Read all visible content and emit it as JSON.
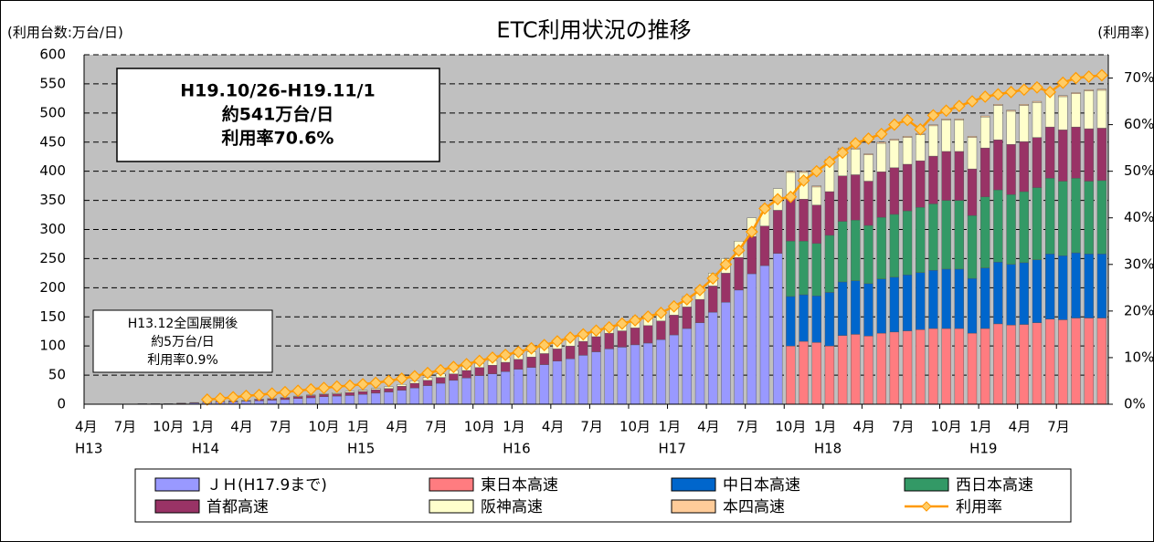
{
  "chart_data": {
    "type": "stacked_bar_line",
    "title": "ETC利用状況の推移",
    "y_label": "(利用台数:万台/日)",
    "y2_label": "(利用率)",
    "annotations": [
      {
        "lines": [
          "H19.10/26-H19.11/1",
          "約541万台/日",
          "利用率70.6%"
        ]
      },
      {
        "lines": [
          "H13.12全国展開後",
          "約5万台/日",
          "利用率0.9%"
        ]
      }
    ],
    "categories": [
      "4月",
      null,
      null,
      "7月",
      null,
      null,
      "10月",
      null,
      null,
      "1月",
      null,
      null,
      "4月",
      null,
      null,
      "7月",
      null,
      null,
      "10月",
      null,
      null,
      "1月",
      null,
      null,
      "4月",
      null,
      null,
      "7月",
      null,
      null,
      "10月",
      null,
      null,
      "1月",
      null,
      null,
      "4月",
      null,
      null,
      "7月",
      null,
      null,
      "10月",
      null,
      null,
      "1月",
      null,
      null,
      "4月",
      null,
      null,
      "7月",
      null,
      null,
      "10月",
      null,
      null,
      "1月",
      null,
      null,
      "4月",
      null,
      null,
      "7月",
      null,
      null,
      "10月",
      null,
      null,
      "1月",
      null,
      null,
      "4月",
      null,
      null,
      "7月",
      null,
      null,
      null
    ],
    "category_years": [
      "H13",
      null,
      null,
      null,
      null,
      null,
      null,
      null,
      null,
      "H14",
      null,
      null,
      null,
      null,
      null,
      null,
      null,
      null,
      null,
      null,
      null,
      "H15",
      null,
      null,
      null,
      null,
      null,
      null,
      null,
      null,
      null,
      null,
      null,
      "H16",
      null,
      null,
      null,
      null,
      null,
      null,
      null,
      null,
      null,
      null,
      null,
      "H17",
      null,
      null,
      null,
      null,
      null,
      null,
      null,
      null,
      null,
      null,
      null,
      "H18",
      null,
      null,
      null,
      null,
      null,
      null,
      null,
      null,
      null,
      null,
      null,
      "H19",
      null,
      null,
      null,
      null,
      null,
      null,
      null,
      null,
      null
    ],
    "ylim": [
      0,
      600
    ],
    "yticks": [
      0,
      50,
      100,
      150,
      200,
      250,
      300,
      350,
      400,
      450,
      500,
      550,
      600
    ],
    "y2lim": [
      0,
      75
    ],
    "y2ticks": [
      {
        "value": 0,
        "label": "0%"
      },
      {
        "value": 10,
        "label": "10%"
      },
      {
        "value": 20,
        "label": "20%"
      },
      {
        "value": 30,
        "label": "30%"
      },
      {
        "value": 40,
        "label": "40%"
      },
      {
        "value": 50,
        "label": "50%"
      },
      {
        "value": 60,
        "label": "60%"
      },
      {
        "value": 70,
        "label": "70%"
      }
    ],
    "grid": true,
    "series": [
      {
        "name": "ＪＨ(H17.9まで)",
        "color": "#9999ff",
        "values": [
          0,
          0,
          0,
          0,
          1,
          1,
          1,
          1,
          2,
          3,
          4,
          4,
          5,
          6,
          7,
          8,
          10,
          11,
          13,
          14,
          15,
          17,
          19,
          21,
          24,
          28,
          32,
          36,
          41,
          45,
          49,
          52,
          56,
          60,
          63,
          68,
          74,
          78,
          84,
          90,
          95,
          98,
          102,
          105,
          111,
          119,
          130,
          140,
          158,
          175,
          196,
          224,
          238,
          259,
          null,
          null,
          null,
          null,
          null,
          null,
          null,
          null,
          null,
          null,
          null,
          null,
          null,
          null,
          null,
          null,
          null,
          null,
          null,
          null,
          null,
          null,
          null,
          null,
          null
        ]
      },
      {
        "name": "東日本高速",
        "color": "#ff7c80",
        "values": [
          null,
          null,
          null,
          null,
          null,
          null,
          null,
          null,
          null,
          null,
          null,
          null,
          null,
          null,
          null,
          null,
          null,
          null,
          null,
          null,
          null,
          null,
          null,
          null,
          null,
          null,
          null,
          null,
          null,
          null,
          null,
          null,
          null,
          null,
          null,
          null,
          null,
          null,
          null,
          null,
          null,
          null,
          null,
          null,
          null,
          null,
          null,
          null,
          null,
          null,
          null,
          null,
          null,
          null,
          100,
          108,
          106,
          100,
          118,
          120,
          117,
          122,
          124,
          126,
          128,
          130,
          130,
          130,
          122,
          130,
          138,
          136,
          137,
          140,
          146,
          145,
          148,
          148,
          148
        ]
      },
      {
        "name": "中日本高速",
        "color": "#0066cc",
        "values": [
          null,
          null,
          null,
          null,
          null,
          null,
          null,
          null,
          null,
          null,
          null,
          null,
          null,
          null,
          null,
          null,
          null,
          null,
          null,
          null,
          null,
          null,
          null,
          null,
          null,
          null,
          null,
          null,
          null,
          null,
          null,
          null,
          null,
          null,
          null,
          null,
          null,
          null,
          null,
          null,
          null,
          null,
          null,
          null,
          null,
          null,
          null,
          null,
          null,
          null,
          null,
          null,
          null,
          null,
          85,
          80,
          80,
          92,
          92,
          92,
          90,
          93,
          94,
          96,
          98,
          100,
          102,
          102,
          94,
          104,
          106,
          104,
          106,
          108,
          112,
          110,
          112,
          110,
          110
        ]
      },
      {
        "name": "西日本高速",
        "color": "#339966",
        "values": [
          null,
          null,
          null,
          null,
          null,
          null,
          null,
          null,
          null,
          null,
          null,
          null,
          null,
          null,
          null,
          null,
          null,
          null,
          null,
          null,
          null,
          null,
          null,
          null,
          null,
          null,
          null,
          null,
          null,
          null,
          null,
          null,
          null,
          null,
          null,
          null,
          null,
          null,
          null,
          null,
          null,
          null,
          null,
          null,
          null,
          null,
          null,
          null,
          null,
          null,
          null,
          null,
          null,
          null,
          95,
          92,
          90,
          98,
          104,
          104,
          100,
          106,
          108,
          110,
          112,
          114,
          118,
          118,
          108,
          122,
          124,
          120,
          122,
          124,
          130,
          128,
          128,
          125,
          126
        ]
      },
      {
        "name": "首都高速",
        "color": "#993366",
        "values": [
          0,
          0,
          0,
          0,
          0,
          0,
          0,
          1,
          1,
          1,
          1,
          1,
          1,
          2,
          2,
          3,
          3,
          4,
          4,
          4,
          5,
          5,
          6,
          6,
          7,
          8,
          9,
          10,
          11,
          13,
          14,
          15,
          16,
          17,
          18,
          19,
          21,
          22,
          24,
          26,
          27,
          28,
          29,
          30,
          32,
          34,
          37,
          40,
          45,
          50,
          56,
          64,
          68,
          74,
          75,
          72,
          66,
          75,
          78,
          78,
          76,
          78,
          80,
          80,
          80,
          82,
          84,
          84,
          80,
          84,
          86,
          86,
          86,
          86,
          88,
          88,
          88,
          90,
          90
        ]
      },
      {
        "name": "阪神高速",
        "color": "#ffffcc",
        "values": [
          0,
          0,
          0,
          0,
          0,
          0,
          0,
          0,
          0,
          0,
          0,
          1,
          1,
          1,
          1,
          1,
          1,
          1,
          1,
          2,
          2,
          2,
          2,
          3,
          3,
          4,
          5,
          6,
          6,
          7,
          7,
          8,
          8,
          8,
          9,
          10,
          10,
          12,
          12,
          12,
          13,
          14,
          14,
          15,
          15,
          17,
          18,
          20,
          22,
          25,
          28,
          32,
          34,
          37,
          43,
          46,
          31,
          53,
          46,
          44,
          45,
          49,
          47,
          46,
          45,
          52,
          54,
          54,
          54,
          53,
          59,
          57,
          62,
          60,
          57,
          57,
          57,
          65,
          65
        ]
      },
      {
        "name": "本四高速",
        "color": "#ffcc99",
        "values": [
          null,
          null,
          null,
          null,
          null,
          null,
          null,
          null,
          null,
          null,
          null,
          null,
          null,
          null,
          null,
          null,
          null,
          null,
          null,
          null,
          null,
          null,
          null,
          null,
          null,
          null,
          null,
          null,
          null,
          null,
          null,
          null,
          null,
          null,
          null,
          null,
          null,
          null,
          null,
          null,
          null,
          null,
          null,
          null,
          null,
          null,
          null,
          null,
          null,
          null,
          null,
          null,
          null,
          null,
          2,
          2,
          2,
          2,
          2,
          2,
          2,
          2,
          2,
          2,
          2,
          2,
          2,
          2,
          2,
          2,
          2,
          2,
          2,
          2,
          2,
          2,
          2,
          2,
          2
        ]
      },
      {
        "name": "利用率",
        "color": "#ffcc66",
        "line_color": "#ff9900",
        "axis": "y2",
        "values": [
          null,
          null,
          null,
          null,
          null,
          null,
          null,
          null,
          null,
          1,
          1.2,
          1.5,
          1.8,
          2,
          2.3,
          2.6,
          2.9,
          3.2,
          3.5,
          3.8,
          4,
          4.3,
          4.6,
          5,
          5.5,
          6,
          6.7,
          7.3,
          8,
          8.6,
          9.3,
          10,
          10.6,
          11.2,
          12,
          12.7,
          13.5,
          14.3,
          15,
          15.8,
          16.5,
          17.3,
          18,
          18.8,
          19.6,
          21,
          22.5,
          24.5,
          27,
          30,
          33,
          37,
          42,
          44,
          44.5,
          48,
          50,
          52,
          54,
          56,
          57,
          58,
          60,
          61,
          59,
          62,
          63,
          64,
          65,
          66,
          66.5,
          67,
          67.5,
          68,
          67,
          69,
          70,
          70.3,
          70.6
        ]
      }
    ]
  }
}
